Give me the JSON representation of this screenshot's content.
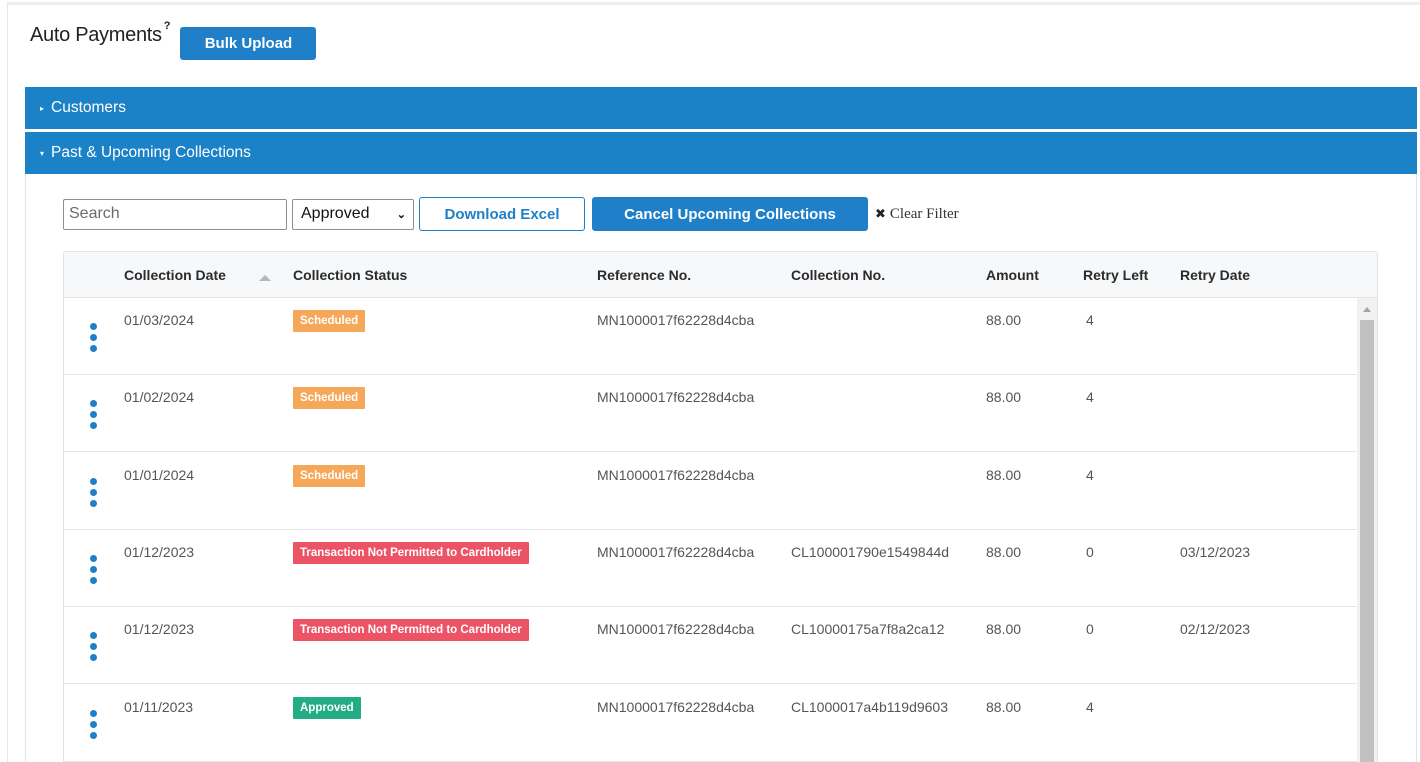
{
  "page": {
    "title": "Auto Payments",
    "help_mark": "?",
    "bulk_upload_label": "Bulk Upload"
  },
  "panels": {
    "customers": {
      "label": "Customers",
      "caret": "▸"
    },
    "collections": {
      "label": "Past & Upcoming Collections",
      "caret": "▾"
    }
  },
  "toolbar": {
    "search_placeholder": "Search",
    "status_selected": "Approved",
    "download_label": "Download Excel",
    "cancel_label": "Cancel Upcoming Collections",
    "clear_filter_label": "Clear Filter"
  },
  "table": {
    "columns": [
      "Collection Date",
      "Collection Status",
      "Reference No.",
      "Collection No.",
      "Amount",
      "Retry Left",
      "Retry Date"
    ],
    "sort_column": "Collection Date",
    "rows": [
      {
        "date": "01/03/2024",
        "status": "Scheduled",
        "status_kind": "scheduled",
        "reference": "MN1000017f62228d4cba",
        "collection_no": "",
        "amount": "88.00",
        "retry_left": "4",
        "retry_date": ""
      },
      {
        "date": "01/02/2024",
        "status": "Scheduled",
        "status_kind": "scheduled",
        "reference": "MN1000017f62228d4cba",
        "collection_no": "",
        "amount": "88.00",
        "retry_left": "4",
        "retry_date": ""
      },
      {
        "date": "01/01/2024",
        "status": "Scheduled",
        "status_kind": "scheduled",
        "reference": "MN1000017f62228d4cba",
        "collection_no": "",
        "amount": "88.00",
        "retry_left": "4",
        "retry_date": ""
      },
      {
        "date": "01/12/2023",
        "status": "Transaction Not Permitted to Cardholder",
        "status_kind": "failed",
        "reference": "MN1000017f62228d4cba",
        "collection_no": "CL100001790e1549844d",
        "amount": "88.00",
        "retry_left": "0",
        "retry_date": "03/12/2023"
      },
      {
        "date": "01/12/2023",
        "status": "Transaction Not Permitted to Cardholder",
        "status_kind": "failed",
        "reference": "MN1000017f62228d4cba",
        "collection_no": "CL10000175a7f8a2ca12",
        "amount": "88.00",
        "retry_left": "0",
        "retry_date": "02/12/2023"
      },
      {
        "date": "01/11/2023",
        "status": "Approved",
        "status_kind": "approved",
        "reference": "MN1000017f62228d4cba",
        "collection_no": "CL1000017a4b119d9603",
        "amount": "88.00",
        "retry_left": "4",
        "retry_date": ""
      }
    ]
  },
  "colors": {
    "primary": "#1f7fc8",
    "panel_header": "#1c82c8",
    "scheduled": "#f5a85a",
    "failed": "#ec5466",
    "approved": "#22ad85"
  }
}
